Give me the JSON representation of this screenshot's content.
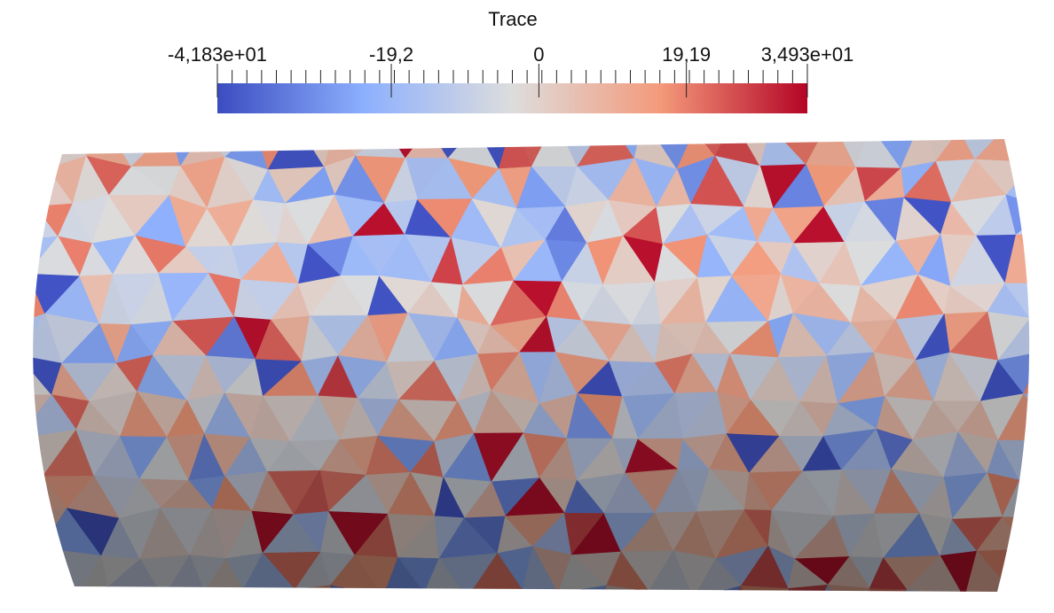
{
  "colorbar": {
    "title": "Trace",
    "range": [
      -41.83,
      34.93
    ],
    "ticks": [
      {
        "value": -41.83,
        "label": "-4,183e+01"
      },
      {
        "value": -19.2,
        "label": "-19,2"
      },
      0,
      {
        "value": 19.19,
        "label": "19,19"
      },
      {
        "value": 34.93,
        "label": "3,493e+01"
      }
    ]
  }
}
